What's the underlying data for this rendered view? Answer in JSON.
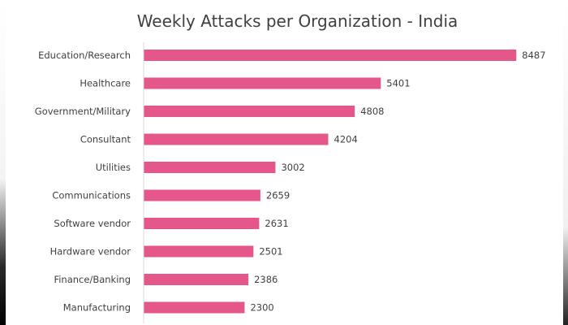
{
  "chart_data": {
    "type": "bar",
    "orientation": "horizontal",
    "title": "Weekly Attacks per Organization - India",
    "categories": [
      "Education/Research",
      "Healthcare",
      "Government/Military",
      "Consultant",
      "Utilities",
      "Communications",
      "Software vendor",
      "Hardware vendor",
      "Finance/Banking",
      "Manufacturing"
    ],
    "values": [
      8487,
      5401,
      4808,
      4204,
      3002,
      2659,
      2631,
      2501,
      2386,
      2300
    ],
    "xlim": [
      0,
      8500
    ],
    "grid": false,
    "legend": "none",
    "bar_color": "#e5578a",
    "axis_color": "#d9d9d9"
  }
}
